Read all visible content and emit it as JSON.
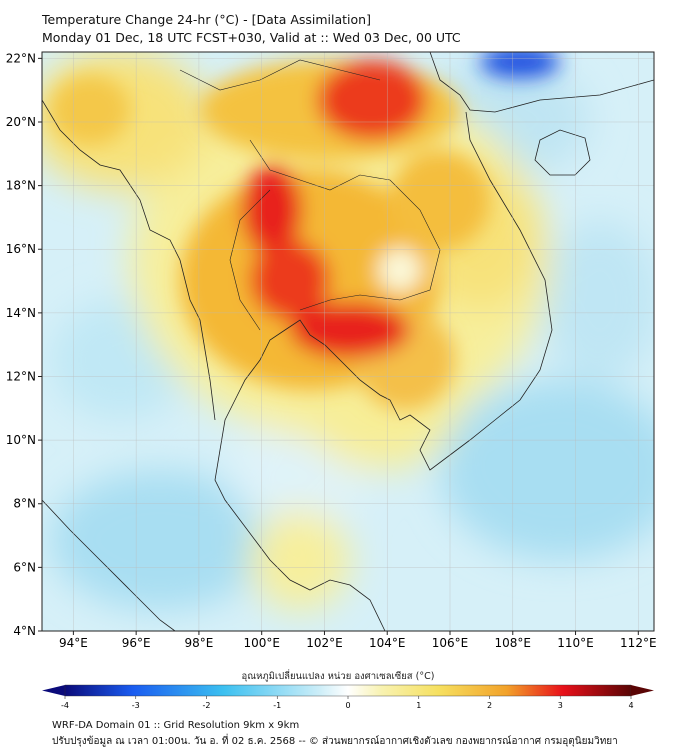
{
  "title": {
    "line1": "Temperature Change 24-hr (°C) - [Data Assimilation]",
    "line2": "Monday 01 Dec, 18 UTC FCST+030, Valid at :: Wed 03 Dec, 00 UTC"
  },
  "axes": {
    "lat_labels": [
      "22°N",
      "20°N",
      "18°N",
      "16°N",
      "14°N",
      "12°N",
      "10°N",
      "8°N",
      "6°N",
      "4°N"
    ],
    "lat_values": [
      22,
      20,
      18,
      16,
      14,
      12,
      10,
      8,
      6,
      4
    ],
    "lon_labels": [
      "94°E",
      "96°E",
      "98°E",
      "100°E",
      "102°E",
      "104°E",
      "106°E",
      "108°E",
      "110°E",
      "112°E"
    ],
    "lon_values": [
      94,
      96,
      98,
      100,
      102,
      104,
      106,
      108,
      110,
      112
    ],
    "lon_range": [
      93,
      112.5
    ],
    "lat_range": [
      4,
      22.2
    ]
  },
  "colorbar": {
    "label": "อุณหภูมิเปลี่ยนแปลง หน่วย องศาเซลเซียส (°C)",
    "ticks": [
      "-4",
      "-3",
      "-2",
      "-1",
      "0",
      "1",
      "2",
      "3",
      "4"
    ],
    "tick_values": [
      -4,
      -3,
      -2,
      -1,
      0,
      1,
      2,
      3,
      4
    ],
    "range": [
      -4,
      4
    ],
    "colors": {
      "min": "#0a0a7a",
      "blue": "#1a5cf0",
      "cyan": "#3cc0f0",
      "light": "#e8f6fb",
      "yellow": "#f6ee90",
      "orange": "#f2a22a",
      "red": "#e8101a",
      "max": "#5a0505"
    }
  },
  "footer": {
    "line1": "WRF-DA Domain 01 :: Grid Resolution 9km x 9km",
    "line2": "ปรับปรุงข้อมูล ณ เวลา 01:00น. วัน อ. ที่ 02 ธ.ค. 2568 -- © ส่วนพยากรณ์อากาศเชิงตัวเลข กองพยากรณ์อากาศ กรมอุตุนิยมวิทยา"
  }
}
